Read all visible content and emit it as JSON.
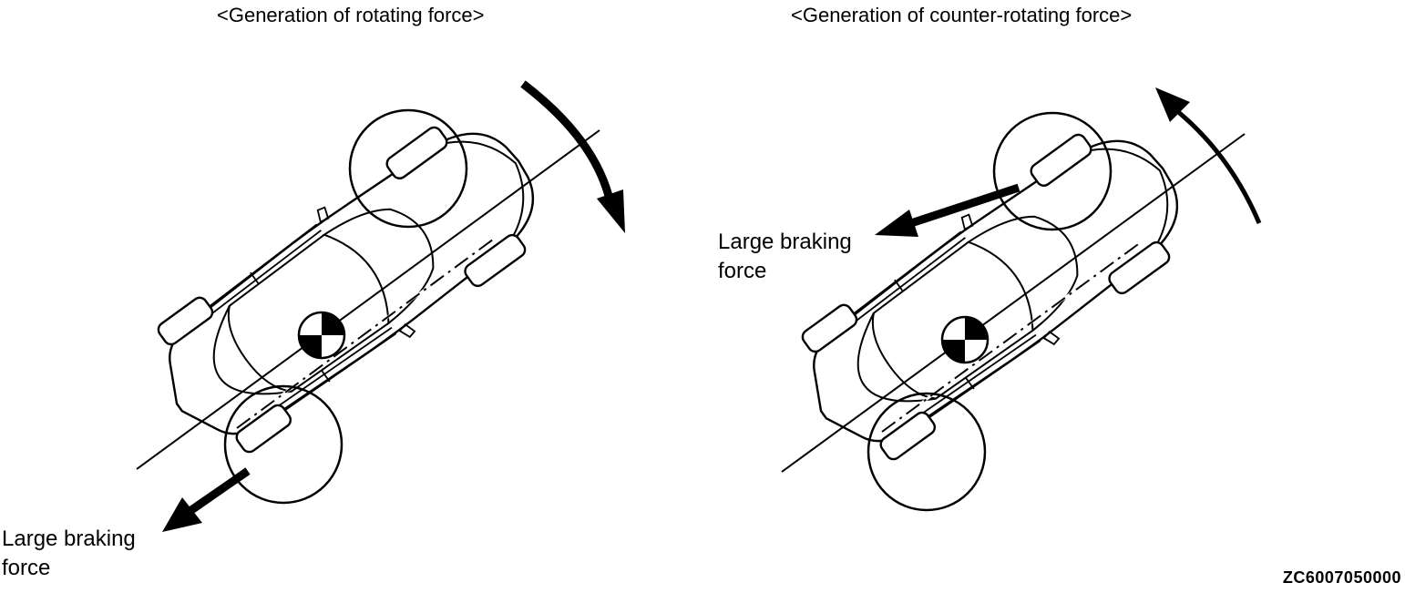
{
  "left_panel": {
    "title": "<Generation of rotating force>",
    "label_line1": "Large braking",
    "label_line2": "force"
  },
  "right_panel": {
    "title": "<Generation of counter-rotating force>",
    "label_line1": "Large braking",
    "label_line2": "force"
  },
  "figure_code": "ZC6007050000"
}
